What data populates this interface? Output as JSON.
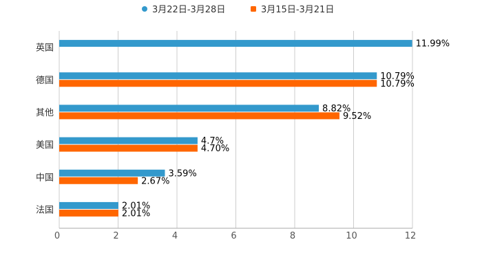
{
  "chart_data": {
    "type": "bar",
    "orientation": "horizontal",
    "title": "",
    "xlabel": "",
    "ylabel": "",
    "categories": [
      "英国",
      "德国",
      "其他",
      "美国",
      "中国",
      "法国"
    ],
    "series": [
      {
        "name": "3月22日-3月28日",
        "color": "#3399CC",
        "values": [
          11.99,
          10.79,
          8.82,
          4.7,
          3.59,
          2.01
        ],
        "labels": [
          "11.99%",
          "10.79%",
          "8.82%",
          "4.7%",
          "3.59%",
          "2.01%"
        ]
      },
      {
        "name": "3月15日-3月21日",
        "color": "#FF6600",
        "values": [
          null,
          10.79,
          9.52,
          4.7,
          2.67,
          2.01
        ],
        "labels": [
          "",
          "10.79%",
          "9.52%",
          "4.70%",
          "2.67%",
          "2.01%"
        ]
      }
    ],
    "xlim": [
      0,
      12
    ],
    "xticks": [
      "0",
      "2",
      "4",
      "6",
      "8",
      "10",
      "12"
    ],
    "grid": true,
    "legend": "top-center"
  }
}
